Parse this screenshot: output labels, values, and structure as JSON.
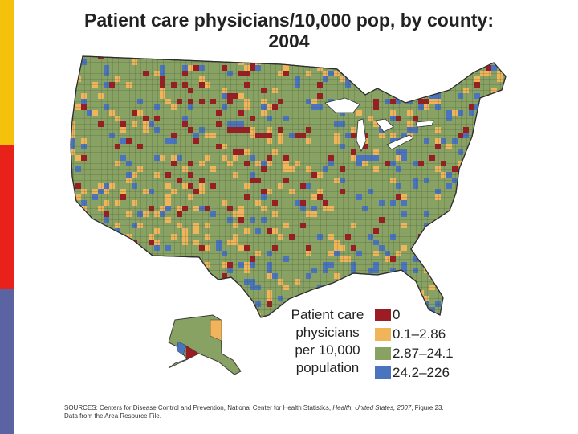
{
  "sidebar": {
    "colors": [
      "#f4c20d",
      "#e8221b",
      "#5b63a3"
    ]
  },
  "title": {
    "line1": "Patient care physicians/10,000 pop, by county:",
    "line2": "2004"
  },
  "legend": {
    "label_lines": [
      "Patient care",
      "physicians",
      "per 10,000",
      "population"
    ],
    "items": [
      {
        "label": "0",
        "color": "#9b1c22"
      },
      {
        "label": "0.1–2.86",
        "color": "#f0b45a"
      },
      {
        "label": "2.87–24.1",
        "color": "#87a262"
      },
      {
        "label": "24.2–226",
        "color": "#4a74bd"
      }
    ]
  },
  "map": {
    "base_color": "#87a262",
    "border_color": "#3a3a3a"
  },
  "source": {
    "prefix": "SOURCES: Centers for Disease Control and Prevention, National Center for Health Statistics, ",
    "italic": "Health, United States, 2007",
    "suffix": ", Figure 23.",
    "line2": "Data from the Area Resource File."
  }
}
